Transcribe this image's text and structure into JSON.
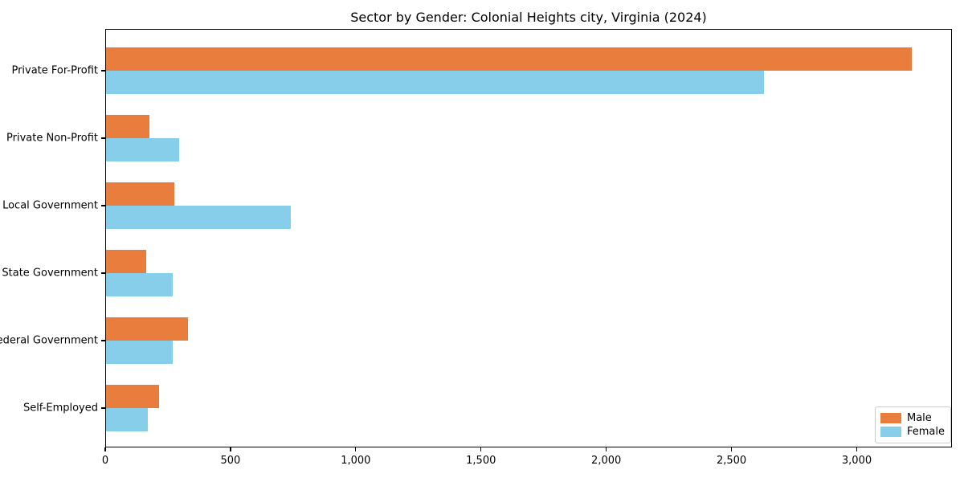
{
  "title": "Sector by Gender: Colonial Heights city, Virginia (2024)",
  "colors": {
    "male": "#e87d3e",
    "female": "#87ceeb",
    "axis": "#000000",
    "legend_border": "#cccccc",
    "background": "#ffffff"
  },
  "legend": {
    "position": "lower right",
    "items": [
      {
        "label": "Male",
        "color": "#e87d3e"
      },
      {
        "label": "Female",
        "color": "#87ceeb"
      }
    ]
  },
  "chart_data": {
    "type": "bar",
    "orientation": "horizontal",
    "title": "Sector by Gender: Colonial Heights city, Virginia (2024)",
    "xlabel": "",
    "ylabel": "",
    "categories": [
      "Private For-Profit",
      "Private Non-Profit",
      "Local Government",
      "State Government",
      "Federal Government",
      "Self-Employed"
    ],
    "series": [
      {
        "name": "Male",
        "color": "#e87d3e",
        "values": [
          3220,
          175,
          275,
          165,
          330,
          215
        ]
      },
      {
        "name": "Female",
        "color": "#87ceeb",
        "values": [
          2630,
          295,
          740,
          270,
          270,
          170
        ]
      }
    ],
    "xlim": [
      0,
      3380
    ],
    "xticks": [
      0,
      500,
      1000,
      1500,
      2000,
      2500,
      3000
    ],
    "xtick_labels": [
      "0",
      "500",
      "1,000",
      "1,500",
      "2,000",
      "2,500",
      "3,000"
    ],
    "grid": false,
    "legend_position": "lower right"
  }
}
